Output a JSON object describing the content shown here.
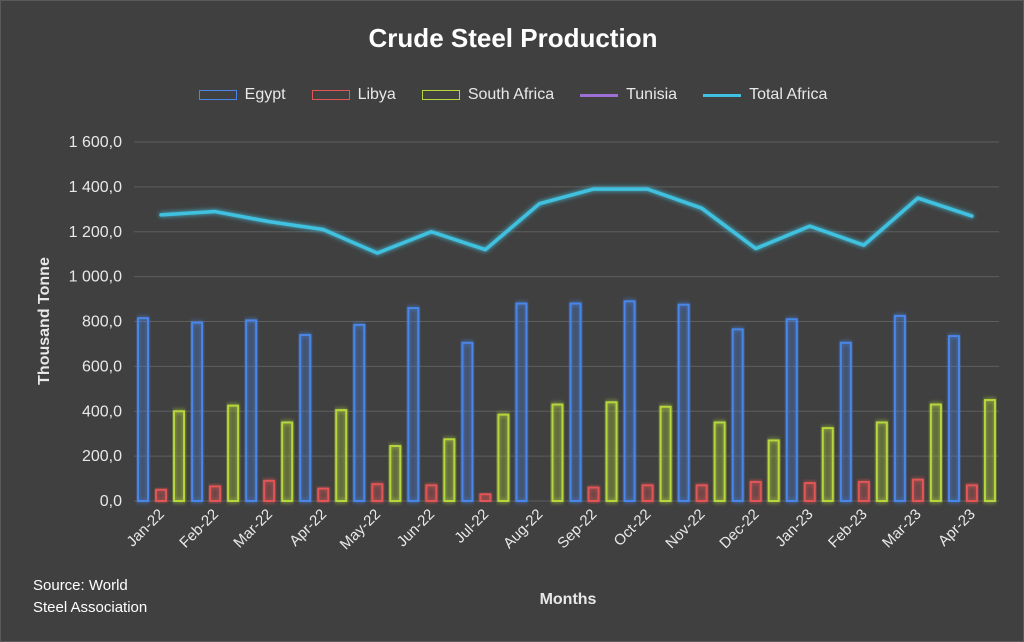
{
  "chart_data": {
    "type": "bar",
    "title": "Crude Steel Production",
    "xlabel": "Months",
    "ylabel": "Thousand Tonne",
    "categories": [
      "Jan-22",
      "Feb-22",
      "Mar-22",
      "Apr-22",
      "May-22",
      "Jun-22",
      "Jul-22",
      "Aug-22",
      "Sep-22",
      "Oct-22",
      "Nov-22",
      "Dec-22",
      "Jan-23",
      "Feb-23",
      "Mar-23",
      "Apr-23"
    ],
    "ylim": [
      0,
      1600
    ],
    "yticks": [
      "0,0",
      "200,0",
      "400,0",
      "600,0",
      "800,0",
      "1 000,0",
      "1 200,0",
      "1 400,0",
      "1 600,0"
    ],
    "grid": true,
    "legend_position": "top",
    "series": [
      {
        "name": "Egypt",
        "kind": "bar",
        "color": "#4a86e8",
        "values": [
          815,
          795,
          805,
          740,
          785,
          860,
          705,
          880,
          880,
          890,
          875,
          765,
          810,
          705,
          825,
          735
        ]
      },
      {
        "name": "Libya",
        "kind": "bar",
        "color": "#e05555",
        "values": [
          50,
          65,
          90,
          55,
          75,
          70,
          30,
          0,
          60,
          70,
          70,
          85,
          80,
          85,
          95,
          70
        ]
      },
      {
        "name": "South Africa",
        "kind": "bar",
        "color": "#b5d63c",
        "values": [
          400,
          425,
          350,
          405,
          245,
          275,
          385,
          430,
          440,
          420,
          350,
          270,
          325,
          350,
          430,
          450
        ]
      },
      {
        "name": "Tunisia",
        "kind": "line",
        "color": "#9b6fd4",
        "values": [
          8,
          8,
          8,
          8,
          8,
          8,
          8,
          8,
          8,
          8,
          8,
          8,
          8,
          8,
          8,
          8
        ]
      },
      {
        "name": "Total Africa",
        "kind": "line",
        "color": "#3fc1df",
        "values": [
          1275,
          1290,
          1245,
          1210,
          1105,
          1200,
          1120,
          1325,
          1390,
          1390,
          1305,
          1125,
          1225,
          1140,
          1350,
          1270
        ]
      }
    ]
  },
  "source": {
    "line1": "Source:  World",
    "line2": "Steel Association"
  }
}
